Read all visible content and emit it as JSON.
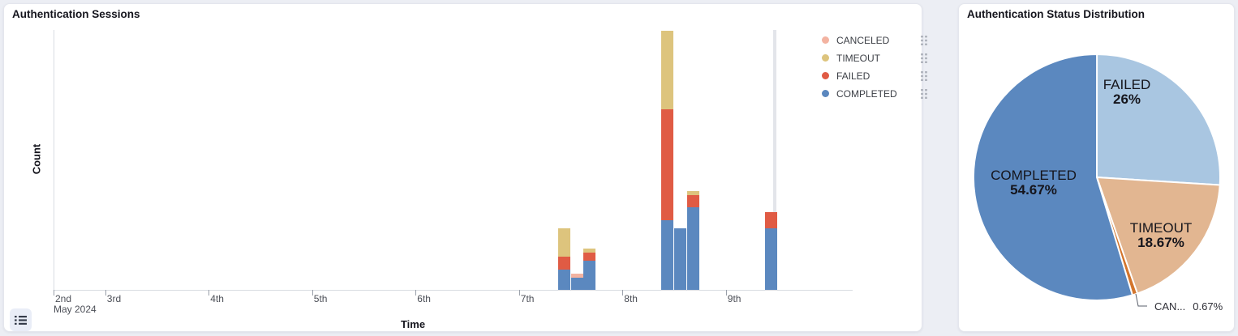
{
  "left_panel": {
    "title": "Authentication Sessions",
    "xlabel": "Time",
    "ylabel": "Count",
    "x_axis": {
      "month_label": "May 2024",
      "day_labels": [
        "2nd",
        "3rd",
        "4th",
        "5th",
        "6th",
        "7th",
        "8th",
        "9th"
      ]
    }
  },
  "legend": {
    "items": [
      {
        "label": "CANCELED",
        "color": "#f3b3a1"
      },
      {
        "label": "TIMEOUT",
        "color": "#ddc47d"
      },
      {
        "label": "FAILED",
        "color": "#e05b44"
      },
      {
        "label": "COMPLETED",
        "color": "#5b88bf"
      }
    ]
  },
  "right_panel": {
    "title": "Authentication Status Distribution"
  },
  "chart_data": [
    {
      "type": "bar",
      "stacked": true,
      "title": "Authentication Sessions",
      "xlabel": "Time",
      "ylabel": "Count",
      "x_range": [
        "2024-05-02 12:00",
        "2024-05-10 05:00"
      ],
      "ylim": [
        0,
        63
      ],
      "bin_hours": 3,
      "stack_order": [
        "COMPLETED",
        "FAILED",
        "TIMEOUT",
        "CANCELED"
      ],
      "bins": [
        {
          "time": "2024-05-07 09:00",
          "day": 7,
          "hour": 9,
          "COMPLETED": 5,
          "FAILED": 3,
          "TIMEOUT": 7,
          "CANCELED": 0
        },
        {
          "time": "2024-05-07 12:00",
          "day": 7,
          "hour": 12,
          "COMPLETED": 3,
          "FAILED": 0,
          "TIMEOUT": 0,
          "CANCELED": 1
        },
        {
          "time": "2024-05-07 15:00",
          "day": 7,
          "hour": 15,
          "COMPLETED": 7,
          "FAILED": 2,
          "TIMEOUT": 1,
          "CANCELED": 0
        },
        {
          "time": "2024-05-08 09:00",
          "day": 8,
          "hour": 9,
          "COMPLETED": 17,
          "FAILED": 27,
          "TIMEOUT": 19,
          "CANCELED": 0
        },
        {
          "time": "2024-05-08 12:00",
          "day": 8,
          "hour": 12,
          "COMPLETED": 15,
          "FAILED": 0,
          "TIMEOUT": 0,
          "CANCELED": 0
        },
        {
          "time": "2024-05-08 15:00",
          "day": 8,
          "hour": 15,
          "COMPLETED": 20,
          "FAILED": 3,
          "TIMEOUT": 1,
          "CANCELED": 0
        },
        {
          "time": "2024-05-09 09:00",
          "day": 9,
          "hour": 9,
          "COMPLETED": 15,
          "FAILED": 4,
          "TIMEOUT": 0,
          "CANCELED": 0
        }
      ],
      "marker": {
        "label": "current-time",
        "day": 9,
        "hour": 11,
        "color": "#e3e5ea"
      }
    },
    {
      "type": "pie",
      "title": "Authentication Status Distribution",
      "start_angle": "top",
      "direction": "clockwise",
      "slices": [
        {
          "name": "FAILED",
          "pct": 26,
          "pct_label": "26%",
          "color": "#a9c6e1"
        },
        {
          "name": "TIMEOUT",
          "pct": 18.67,
          "pct_label": "18.67%",
          "color": "#e2b691"
        },
        {
          "name": "CANCELED",
          "pct": 0.67,
          "pct_label": "0.67%",
          "name_short": "CAN...",
          "color": "#d3752c"
        },
        {
          "name": "COMPLETED",
          "pct": 54.67,
          "pct_label": "54.67%",
          "color": "#5b88bf"
        }
      ]
    }
  ]
}
